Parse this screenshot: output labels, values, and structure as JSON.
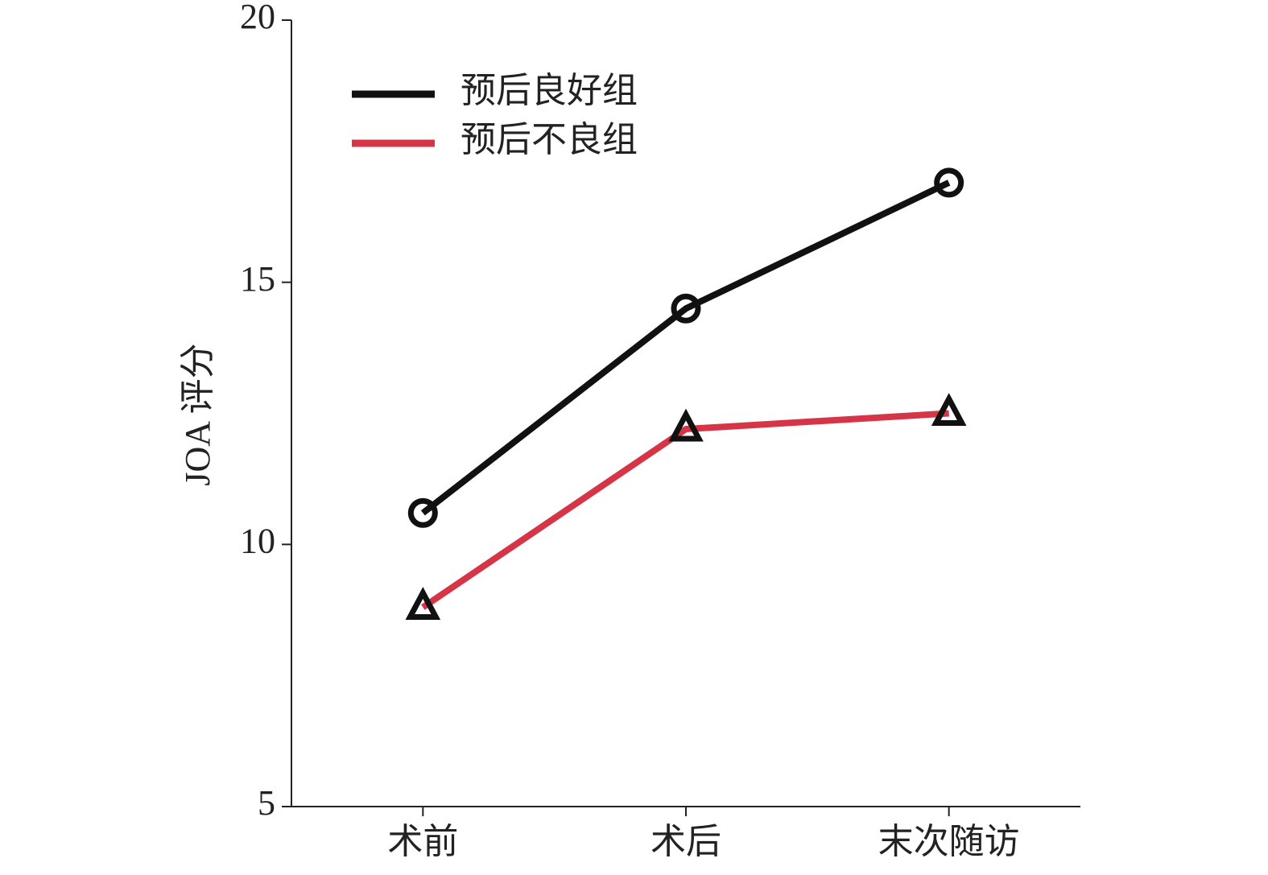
{
  "chart_data": {
    "type": "line",
    "y_label": "JOA 评分",
    "categories": [
      "术前",
      "术后",
      "末次随访"
    ],
    "series": [
      {
        "name": "预后良好组",
        "color": "#111111",
        "marker": "circle",
        "values": [
          10.6,
          14.5,
          16.9
        ]
      },
      {
        "name": "预后不良组",
        "color": "#d63447",
        "marker": "triangle",
        "values": [
          8.8,
          12.2,
          12.5
        ]
      }
    ],
    "ylim": [
      5,
      20
    ],
    "yticks": [
      5,
      10,
      15,
      20
    ],
    "grid": false,
    "legend": "upper left"
  }
}
